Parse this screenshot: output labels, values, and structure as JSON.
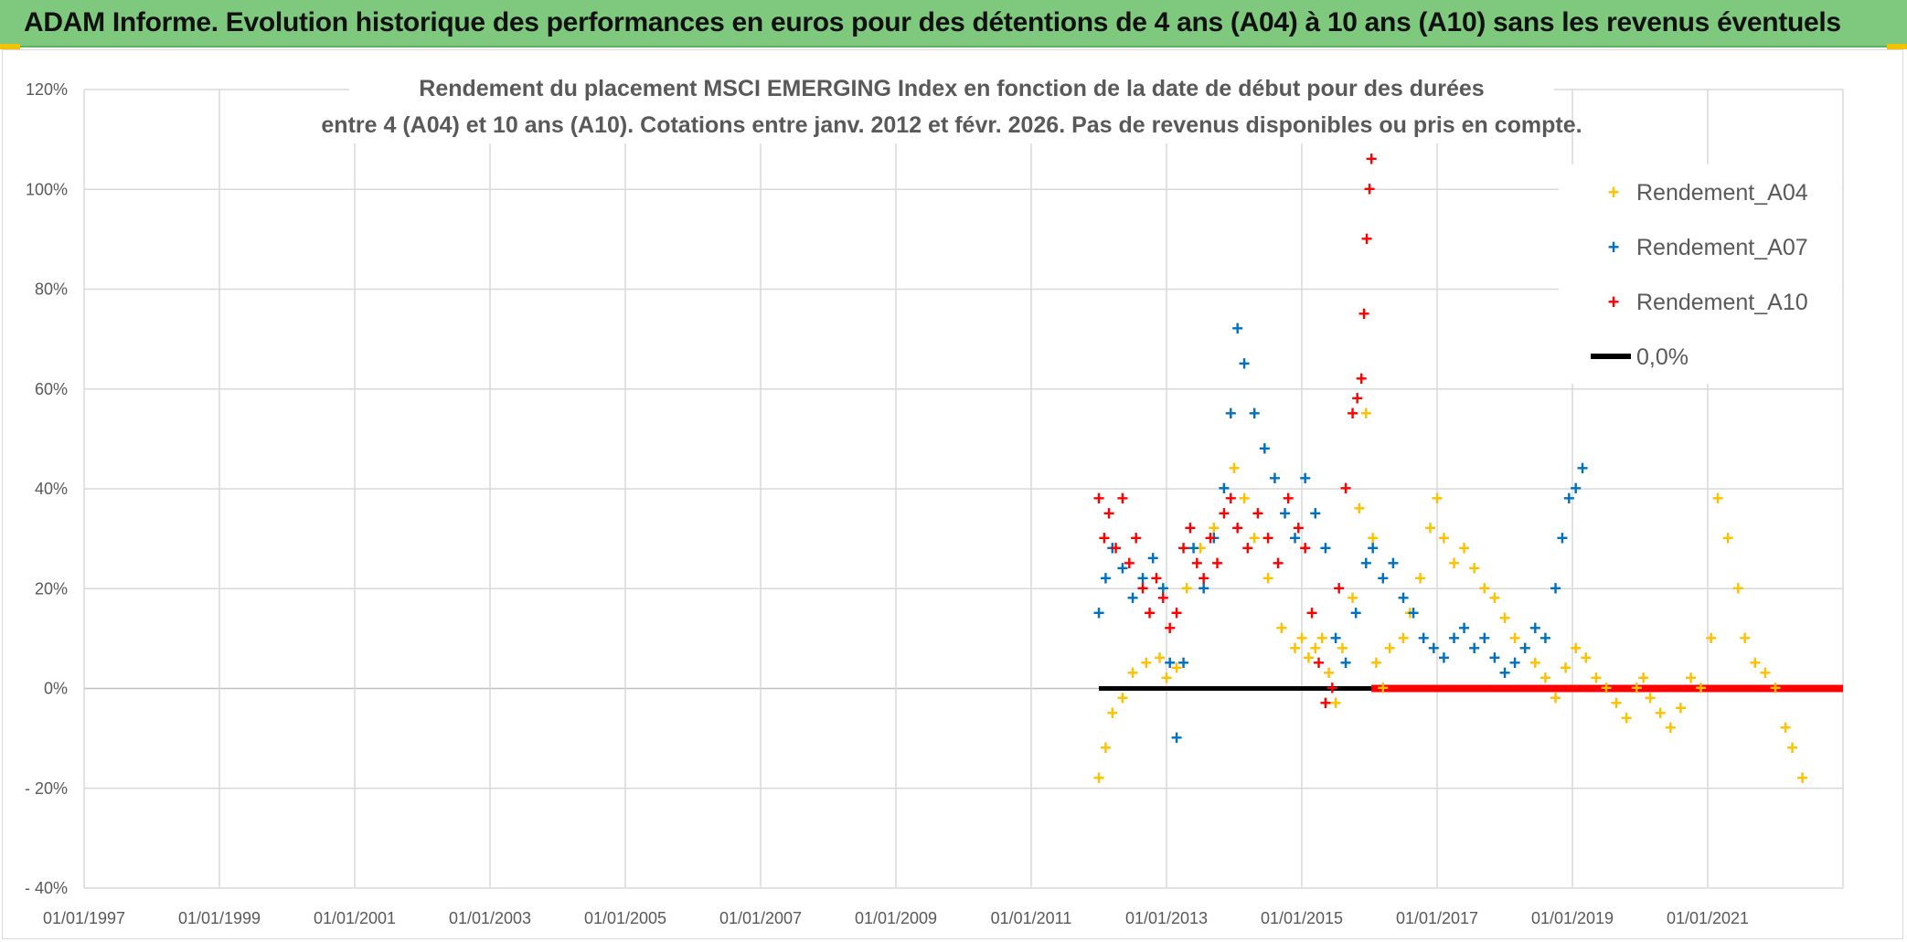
{
  "banner": {
    "title": "ADAM Informe. Evolution historique des performances en euros pour des détentions de 4 ans (A04) à 10 ans (A10) sans les revenus éventuels"
  },
  "colors": {
    "banner_bg": "#7ec97e",
    "a04": "#ffc000",
    "a07": "#0070c0",
    "a10": "#ff0000",
    "zero": "#000000"
  },
  "chart_data": {
    "type": "scatter",
    "title_lines": [
      "Rendement du placement MSCI EMERGING Index en fonction de la date de début pour des durées",
      "entre 4 (A04) et 10 ans (A10). Cotations entre janv. 2012 et févr. 2026. Pas de revenus disponibles ou pris en compte."
    ],
    "xlim": [
      1997.0,
      2023.0
    ],
    "ylim": [
      -40,
      120
    ],
    "y_ticks": [
      -40,
      -20,
      0,
      20,
      40,
      60,
      80,
      100,
      120
    ],
    "y_tick_labels": [
      "- 40%",
      "- 20%",
      "0%",
      "20%",
      "40%",
      "60%",
      "80%",
      "100%",
      "120%"
    ],
    "x_tick_values": [
      1997,
      1999,
      2001,
      2003,
      2005,
      2007,
      2009,
      2011,
      2013,
      2015,
      2017,
      2019,
      2021
    ],
    "x_tick_labels": [
      "01/01/1997",
      "01/01/1999",
      "01/01/2001",
      "01/01/2003",
      "01/01/2005",
      "01/01/2007",
      "01/01/2009",
      "01/01/2011",
      "01/01/2013",
      "01/01/2015",
      "01/01/2017",
      "01/01/2019",
      "01/01/2021"
    ],
    "x_gridlines": [
      1997,
      1999,
      2001,
      2003,
      2005,
      2007,
      2009,
      2011,
      2013,
      2015,
      2017,
      2019,
      2021
    ],
    "grid": true,
    "legend_position": "right",
    "series": [
      {
        "name": "Rendement_A04",
        "color": "#ffc000",
        "x": [
          2012.0,
          2012.1,
          2012.2,
          2012.35,
          2012.5,
          2012.7,
          2012.9,
          2013.0,
          2013.15,
          2013.3,
          2013.5,
          2013.7,
          2013.85,
          2014.0,
          2014.15,
          2014.3,
          2014.5,
          2014.7,
          2014.9,
          2015.0,
          2015.1,
          2015.2,
          2015.3,
          2015.4,
          2015.5,
          2015.6,
          2015.75,
          2015.85,
          2015.95,
          2016.05,
          2016.1,
          2016.2,
          2016.3,
          2016.5,
          2016.6,
          2016.75,
          2016.9,
          2017.0,
          2017.1,
          2017.25,
          2017.4,
          2017.55,
          2017.7,
          2017.85,
          2018.0,
          2018.15,
          2018.3,
          2018.45,
          2018.6,
          2018.75,
          2018.9,
          2019.05,
          2019.2,
          2019.35,
          2019.5,
          2019.65,
          2019.8,
          2019.95,
          2020.05,
          2020.15,
          2020.3,
          2020.45,
          2020.6,
          2020.75,
          2020.9,
          2021.05,
          2021.15,
          2021.3,
          2021.45,
          2021.55,
          2021.7,
          2021.85,
          2022.0,
          2022.15,
          2022.25,
          2022.4
        ],
        "y": [
          -18,
          -12,
          -5,
          -2,
          3,
          5,
          6,
          2,
          4,
          20,
          28,
          32,
          40,
          44,
          38,
          30,
          22,
          12,
          8,
          10,
          6,
          8,
          10,
          3,
          -3,
          8,
          18,
          36,
          55,
          30,
          5,
          0,
          8,
          10,
          15,
          22,
          32,
          38,
          30,
          25,
          28,
          24,
          20,
          18,
          14,
          10,
          8,
          5,
          2,
          -2,
          4,
          8,
          6,
          2,
          0,
          -3,
          -6,
          0,
          2,
          -2,
          -5,
          -8,
          -4,
          2,
          0,
          10,
          38,
          30,
          20,
          10,
          5,
          3,
          0,
          -8,
          -12,
          -18
        ]
      },
      {
        "name": "Rendement_A07",
        "color": "#0070c0",
        "x": [
          2012.0,
          2012.1,
          2012.2,
          2012.35,
          2012.5,
          2012.65,
          2012.8,
          2012.95,
          2013.05,
          2013.15,
          2013.25,
          2013.4,
          2013.55,
          2013.7,
          2013.85,
          2013.95,
          2014.05,
          2014.15,
          2014.3,
          2014.45,
          2014.6,
          2014.75,
          2014.9,
          2015.05,
          2015.2,
          2015.35,
          2015.5,
          2015.65,
          2015.8,
          2015.95,
          2016.05,
          2016.2,
          2016.35,
          2016.5,
          2016.65,
          2016.8,
          2016.95,
          2017.1,
          2017.25,
          2017.4,
          2017.55,
          2017.7,
          2017.85,
          2018.0,
          2018.15,
          2018.3,
          2018.45,
          2018.6,
          2018.75,
          2018.85,
          2018.95,
          2019.05,
          2019.15
        ],
        "y": [
          15,
          22,
          28,
          24,
          18,
          22,
          26,
          20,
          5,
          -10,
          5,
          28,
          20,
          30,
          40,
          55,
          72,
          65,
          55,
          48,
          42,
          35,
          30,
          42,
          35,
          28,
          10,
          5,
          15,
          25,
          28,
          22,
          25,
          18,
          15,
          10,
          8,
          6,
          10,
          12,
          8,
          10,
          6,
          3,
          5,
          8,
          12,
          10,
          20,
          30,
          38,
          40,
          44
        ]
      },
      {
        "name": "Rendement_A10",
        "color": "#ff0000",
        "x": [
          2012.0,
          2012.08,
          2012.15,
          2012.25,
          2012.35,
          2012.45,
          2012.55,
          2012.65,
          2012.75,
          2012.85,
          2012.95,
          2013.05,
          2013.15,
          2013.25,
          2013.35,
          2013.45,
          2013.55,
          2013.65,
          2013.75,
          2013.85,
          2013.95,
          2014.05,
          2014.2,
          2014.35,
          2014.5,
          2014.65,
          2014.8,
          2014.95,
          2015.05,
          2015.15,
          2015.25,
          2015.35,
          2015.45,
          2015.55,
          2015.65,
          2015.75,
          2015.82,
          2015.88,
          2015.92,
          2015.96,
          2016.0,
          2016.03
        ],
        "y": [
          38,
          30,
          35,
          28,
          38,
          25,
          30,
          20,
          15,
          22,
          18,
          12,
          15,
          28,
          32,
          25,
          22,
          30,
          25,
          35,
          38,
          32,
          28,
          35,
          30,
          25,
          38,
          32,
          28,
          15,
          5,
          -3,
          0,
          20,
          40,
          55,
          58,
          62,
          75,
          90,
          100,
          106
        ]
      },
      {
        "name": "0,0%",
        "color": "#000000",
        "style": "line",
        "x": [
          2012.0,
          2023.0
        ],
        "y": [
          0,
          0
        ]
      }
    ]
  }
}
